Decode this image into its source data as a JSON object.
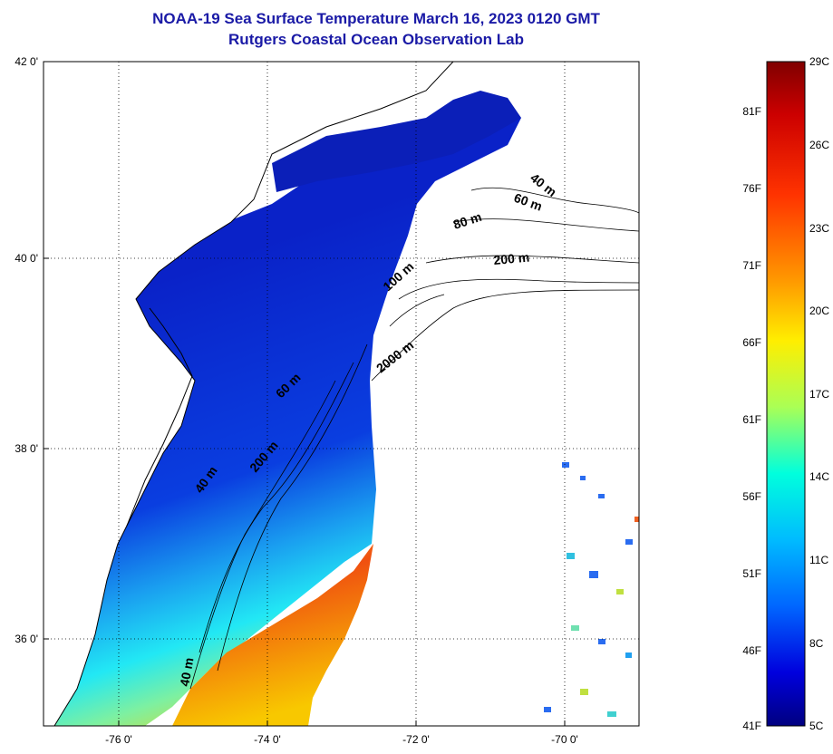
{
  "title": {
    "line1": "NOAA-19 Sea Surface Temperature March 16, 2023 0120 GMT",
    "line2": "Rutgers Coastal Ocean Observation Lab"
  },
  "map": {
    "lat_ticks": [
      "42 0'",
      "40 0'",
      "38 0'",
      "36 0'"
    ],
    "lon_ticks": [
      "-76 0'",
      "-74 0'",
      "-72 0'",
      "-70 0'"
    ],
    "isobaths": {
      "a": "40 m",
      "b": "60 m",
      "c": "80 m",
      "d": "200 m",
      "e": "100 m",
      "f": "2000 m",
      "g": "60 m",
      "h": "200 m",
      "i": "40 m",
      "j": "40 m"
    },
    "colors": {
      "land": "#ffffff",
      "title": "#1a1aa6",
      "cold": "#0a1fc8",
      "warm": "#e8410f"
    }
  },
  "colorbar": {
    "left_labels": [
      "81F",
      "76F",
      "71F",
      "66F",
      "61F",
      "56F",
      "51F",
      "46F",
      "41F"
    ],
    "right_labels": [
      "29C",
      "26C",
      "23C",
      "20C",
      "17C",
      "14C",
      "11C",
      "8C",
      "5C"
    ],
    "range_c": [
      5,
      29
    ],
    "range_f": [
      41,
      84.2
    ],
    "stops": [
      "#800000",
      "#ff0000",
      "#ff8000",
      "#ffff00",
      "#80ff80",
      "#00ffff",
      "#0080ff",
      "#0000ff",
      "#000080"
    ]
  }
}
